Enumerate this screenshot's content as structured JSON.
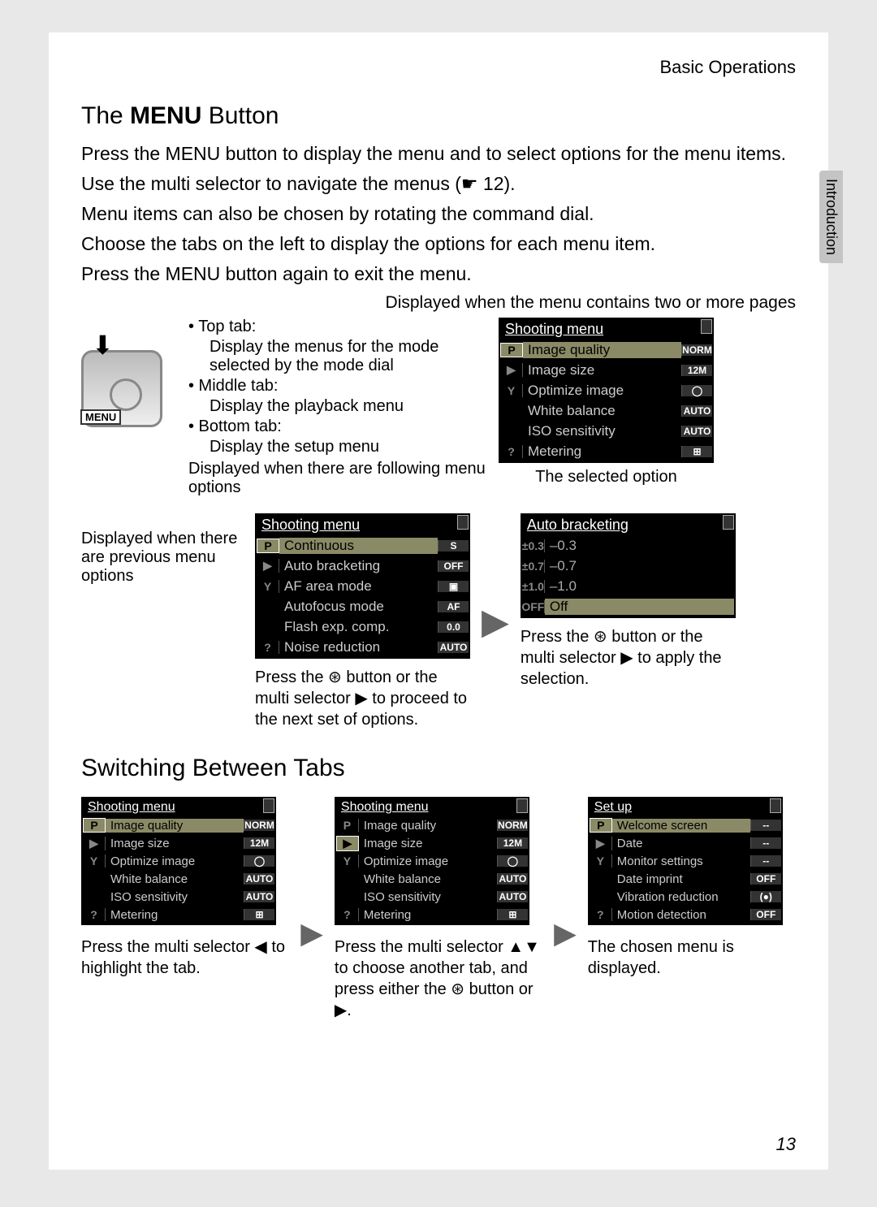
{
  "header": {
    "section": "Basic Operations",
    "side_tab": "Introduction"
  },
  "section1": {
    "heading_pre": "The ",
    "heading_bold": "MENU",
    "heading_post": " Button",
    "p1": "Press the MENU button to display the menu and to select options for the menu items.",
    "p2": "Use the multi selector to navigate the menus (☛ 12).",
    "p3": "Menu items can also be chosen by rotating the command dial.",
    "p4": "Choose the tabs on the left to display the options for each menu item.",
    "p5": "Press the MENU button again to exit the menu.",
    "caption_top": "Displayed when the menu contains two or more pages",
    "bullets": {
      "b1": "• Top tab:",
      "b1s": "Display the menus for the mode selected by the mode dial",
      "b2": "• Middle tab:",
      "b2s": "Display the playback menu",
      "b3": "• Bottom tab:",
      "b3s": "Display the setup menu"
    },
    "note_below": "Displayed when there are following menu options",
    "selected_caption": "The selected option"
  },
  "panel_shoot": {
    "title": "Shooting menu",
    "rows": [
      {
        "tab": "P",
        "label": "Image quality",
        "val": "NORM",
        "hl": true
      },
      {
        "tab": "▶",
        "label": "Image size",
        "val": "12M"
      },
      {
        "tab": "Y",
        "label": "Optimize image",
        "val": "◯"
      },
      {
        "tab": "",
        "label": "White balance",
        "val": "AUTO"
      },
      {
        "tab": "",
        "label": "ISO sensitivity",
        "val": "AUTO"
      },
      {
        "tab": "?",
        "label": "Metering",
        "val": "⊞"
      }
    ]
  },
  "mid": {
    "left_text": "Displayed when there are previous menu options",
    "panelA": {
      "title": "Shooting menu",
      "rows": [
        {
          "tab": "P",
          "label": "Continuous",
          "val": "S",
          "hl": true
        },
        {
          "tab": "▶",
          "label": "Auto bracketing",
          "val": "OFF"
        },
        {
          "tab": "Y",
          "label": "AF area mode",
          "val": "▣"
        },
        {
          "tab": "",
          "label": "Autofocus mode",
          "val": "AF"
        },
        {
          "tab": "",
          "label": "Flash exp. comp.",
          "val": "0.0"
        },
        {
          "tab": "?",
          "label": "Noise reduction",
          "val": "AUTO"
        }
      ]
    },
    "panelB": {
      "title": "Auto bracketing",
      "rows": [
        {
          "pre": "±0.3",
          "label": "–0.3"
        },
        {
          "pre": "±0.7",
          "label": "–0.7"
        },
        {
          "pre": "±1.0",
          "label": "–1.0"
        },
        {
          "pre": "OFF",
          "label": "Off",
          "off": true
        }
      ]
    },
    "capA": "Press the ⊛ button or the multi selector ▶ to proceed to the next set of options.",
    "capB": "Press the ⊛ button or the multi selector ▶ to apply the selection."
  },
  "section2": {
    "heading": "Switching Between Tabs",
    "panel1": {
      "title": "Shooting menu",
      "rows": [
        {
          "tab": "P",
          "label": "Image quality",
          "val": "NORM",
          "hl": true
        },
        {
          "tab": "▶",
          "label": "Image size",
          "val": "12M"
        },
        {
          "tab": "Y",
          "label": "Optimize image",
          "val": "◯"
        },
        {
          "tab": "",
          "label": "White balance",
          "val": "AUTO"
        },
        {
          "tab": "",
          "label": "ISO sensitivity",
          "val": "AUTO"
        },
        {
          "tab": "?",
          "label": "Metering",
          "val": "⊞"
        }
      ]
    },
    "panel2": {
      "title": "Shooting menu",
      "rows": [
        {
          "tab": "P",
          "label": "Image quality",
          "val": "NORM"
        },
        {
          "tab": "▶",
          "label": "Image size",
          "val": "12M",
          "tabhl": true
        },
        {
          "tab": "Y",
          "label": "Optimize image",
          "val": "◯"
        },
        {
          "tab": "",
          "label": "White balance",
          "val": "AUTO"
        },
        {
          "tab": "",
          "label": "ISO sensitivity",
          "val": "AUTO"
        },
        {
          "tab": "?",
          "label": "Metering",
          "val": "⊞"
        }
      ]
    },
    "panel3": {
      "title": "Set up",
      "rows": [
        {
          "tab": "P",
          "label": "Welcome screen",
          "val": "--",
          "hl": true
        },
        {
          "tab": "▶",
          "label": "Date",
          "val": "--"
        },
        {
          "tab": "Y",
          "label": "Monitor settings",
          "val": "--"
        },
        {
          "tab": "",
          "label": "Date imprint",
          "val": "OFF"
        },
        {
          "tab": "",
          "label": "Vibration reduction",
          "val": "(●)"
        },
        {
          "tab": "?",
          "label": "Motion detection",
          "val": "OFF"
        }
      ]
    },
    "cap1": "Press the multi selector ◀ to highlight the tab.",
    "cap2": "Press the multi selector ▲▼ to choose another tab, and press either the ⊛ button or ▶.",
    "cap3": "The chosen menu is displayed."
  },
  "page_number": "13",
  "colors": {
    "panel_bg": "#000000",
    "highlight": "#8a8a66",
    "page_bg": "#ffffff",
    "outer_bg": "#e8e8e8"
  }
}
